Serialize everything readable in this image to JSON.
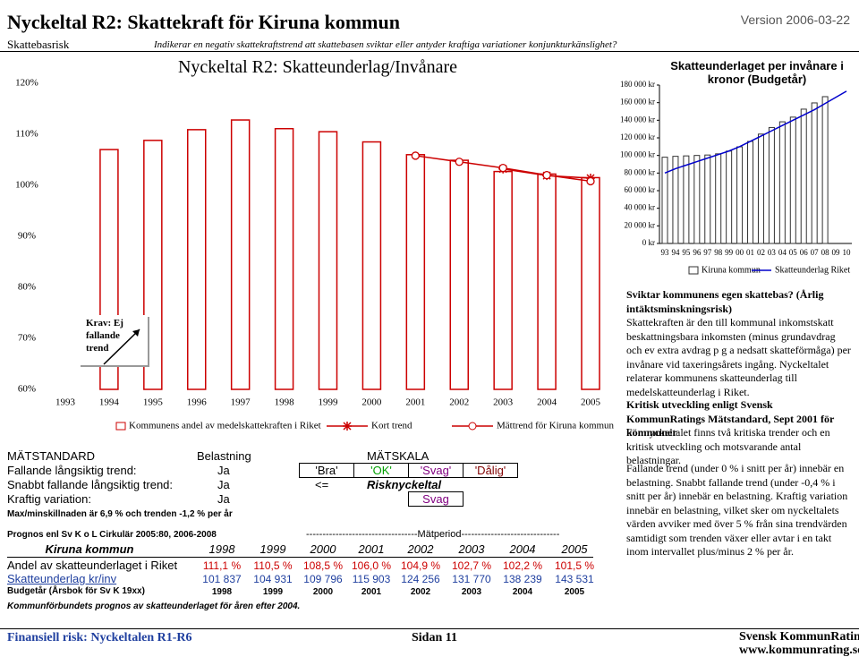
{
  "header": {
    "title": "Nyckeltal R2: Skattekraft för Kiruna kommun",
    "version": "Version 2006-03-22",
    "category": "Skattebasrisk",
    "subtitle": "Indikerar en negativ skattekraftstrend att skattebasen sviktar eller antyder kraftiga variationer konjunkturkänslighet?"
  },
  "chart_data": [
    {
      "type": "bar",
      "title": "Nyckeltal R2: Skatteunderlag/Invånare",
      "categories": [
        "1993",
        "1994",
        "1995",
        "1996",
        "1997",
        "1998",
        "1999",
        "2000",
        "2001",
        "2002",
        "2003",
        "2004",
        "2005"
      ],
      "series": [
        {
          "name": "Kommunens andel av medelskattekraften i Riket",
          "type": "bar",
          "color": "#cc0000",
          "values": [
            null,
            107.0,
            108.8,
            110.9,
            112.8,
            111.1,
            110.5,
            108.5,
            106.0,
            104.9,
            102.7,
            102.2,
            101.5
          ]
        },
        {
          "name": "Kort trend",
          "type": "line",
          "marker": "star",
          "color": "#cc0000",
          "values": [
            null,
            null,
            null,
            null,
            null,
            null,
            null,
            null,
            null,
            null,
            103.2,
            101.9,
            101.4
          ]
        },
        {
          "name": "Mättrend för Kiruna kommun",
          "type": "line",
          "marker": "circle",
          "color": "#cc0000",
          "values": [
            null,
            null,
            null,
            null,
            null,
            null,
            null,
            null,
            105.8,
            104.6,
            103.4,
            102.0,
            100.8
          ]
        }
      ],
      "ylim": [
        60,
        120
      ],
      "yticks": [
        {
          "value": 60,
          "label": "60%"
        },
        {
          "value": 70,
          "label": "70%"
        },
        {
          "value": 80,
          "label": "80%"
        },
        {
          "value": 90,
          "label": "90%"
        },
        {
          "value": 100,
          "label": "100%"
        },
        {
          "value": 110,
          "label": "110%"
        },
        {
          "value": 120,
          "label": "120%"
        }
      ],
      "grid": false
    },
    {
      "type": "bar",
      "title": "Skatteunderlaget per invånare i kronor (Budgetår)",
      "categories": [
        "93",
        "94",
        "95",
        "96",
        "97",
        "98",
        "99",
        "00",
        "01",
        "02",
        "03",
        "04",
        "05",
        "06",
        "07",
        "08",
        "09",
        "10"
      ],
      "series": [
        {
          "name": "Kiruna kommun",
          "type": "bar",
          "color": "#333333",
          "values": [
            98000,
            99000,
            99500,
            100000,
            100500,
            101837,
            104931,
            109796,
            115903,
            124256,
            131770,
            138239,
            143531,
            152600,
            159700,
            166800,
            null,
            null
          ]
        },
        {
          "name": "Skatteunderlag Riket",
          "type": "line",
          "color": "#0000cc",
          "values": [
            80000,
            85000,
            89000,
            93000,
            97000,
            101000,
            105000,
            110000,
            116000,
            122000,
            128000,
            134000,
            140000,
            146000,
            152000,
            159000,
            166000,
            173000
          ]
        }
      ],
      "ylim": [
        0,
        180000
      ],
      "yticks": [
        {
          "value": 0,
          "label": "0 kr"
        },
        {
          "value": 20000,
          "label": "20 000 kr"
        },
        {
          "value": 40000,
          "label": "40 000 kr"
        },
        {
          "value": 60000,
          "label": "60 000 kr"
        },
        {
          "value": 80000,
          "label": "80 000 kr"
        },
        {
          "value": 100000,
          "label": "100 000 kr"
        },
        {
          "value": 120000,
          "label": "120 000 kr"
        },
        {
          "value": 140000,
          "label": "140 000 kr"
        },
        {
          "value": 160000,
          "label": "160 000 kr"
        },
        {
          "value": 180000,
          "label": "180 000 kr"
        }
      ],
      "grid": false
    }
  ],
  "krav": "Krav: Ej fallande trend",
  "matstandard": {
    "headers": [
      "MÄTSTANDARD",
      "Belastning",
      "MÄTSKALA"
    ],
    "rows": [
      [
        "Fallande långsiktig trend:",
        "Ja"
      ],
      [
        "Snabbt fallande långsiktig trend:",
        "Ja"
      ],
      [
        "Kraftig variation:",
        "Ja"
      ]
    ],
    "scale": [
      "'Bra'",
      "'OK'",
      "'Svag'",
      "'Dålig'"
    ],
    "arrow": "<=",
    "risk_label": "Risknyckeltal",
    "risk_value": "Svag",
    "note": "Max/minskillnaden är 6,9 % och trenden -1,2 % per år"
  },
  "prognos": {
    "source": "Prognos enl Sv K o L Cirkulär 2005:80, 2006-2008",
    "period": "----------------------------------Mätperiod------------------------------",
    "header": [
      "Kiruna kommun",
      "1998",
      "1999",
      "2000",
      "2001",
      "2002",
      "2003",
      "2004",
      "2005"
    ],
    "rows": [
      [
        "Andel av skatteunderlaget i Riket",
        "111,1  %",
        "110,5  %",
        "108,5  %",
        "106,0  %",
        "104,9  %",
        "102,7  %",
        "102,2  %",
        "101,5  %"
      ],
      [
        "Skatteunderlag kr/inv",
        "101 837",
        "104 931",
        "109 796",
        "115 903",
        "124 256",
        "131 770",
        "138 239",
        "143 531"
      ],
      [
        "Budgetår (Årsbok för Sv K 19xx)",
        "1998",
        "1999",
        "2000",
        "2001",
        "2002",
        "2003",
        "2004",
        "2005"
      ]
    ],
    "footnote": "Kommunförbundets prognos av skatteunderlaget för åren efter 2004."
  },
  "sidebar": [
    {
      "heading": "Sviktar kommunens egen skattebas? (Årlig intäktsminskningsrisk)",
      "text": "Skattekraften är den till kommunal inkomstskatt beskattningsbara inkomsten (minus grundavdrag och ev extra avdrag p g a nedsatt skatteförmåga) per invånare vid taxeringsårets ingång. Nyckeltalet relaterar kommunens skatteunderlag till medelskatteunderlag i Riket."
    },
    {
      "heading": "Kritisk utveckling enligt Svensk KommunRatings Mätstandard, Sept 2001 för kommuner",
      "text": "För nyckeltalet finns två kritiska trender och en kritisk utveckling och motsvarande antal belastningar."
    },
    {
      "text": "Fallande trend (under 0 % i snitt per år) innebär en belastning. Snabbt fallande trend (under -0,4 % i snitt per år) innebär en belastning. Kraftig variation innebär en belastning, vilket sker om nyckeltalets värden avviker med över 5 % från sina trendvärden samtidigt som trenden växer eller avtar i en takt inom intervallet plus/minus 2 % per år."
    }
  ],
  "footer": {
    "left": "Finansiell risk: Nyckeltalen R1-R6",
    "page": "Sidan 11",
    "org": "Svensk KommunRating",
    "url": "www.kommunrating.se"
  }
}
